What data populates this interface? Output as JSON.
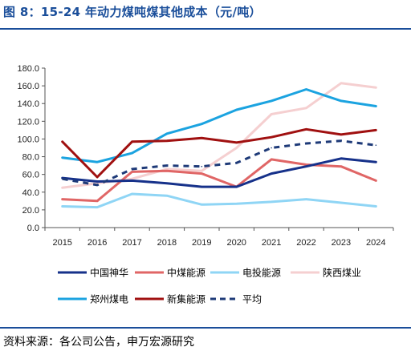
{
  "figure": {
    "title": "图 8：15-24 年动力煤吨煤其他成本（元/吨）",
    "source": "资料来源：各公司公告，申万宏源研究"
  },
  "chart_data": {
    "type": "line",
    "title": "",
    "xlabel": "",
    "ylabel": "",
    "x": [
      "2015",
      "2016",
      "2017",
      "2018",
      "2019",
      "2020",
      "2021",
      "2022",
      "2023",
      "2024"
    ],
    "ylim": [
      0,
      180
    ],
    "yticks": [
      "0.0",
      "20.0",
      "40.0",
      "60.0",
      "80.0",
      "100.0",
      "120.0",
      "140.0",
      "160.0",
      "180.0"
    ],
    "grid": false,
    "legend_position": "bottom",
    "series": [
      {
        "name": "中国神华",
        "color": "#16318a",
        "dash": false,
        "values": [
          56,
          52,
          53,
          50,
          46,
          46,
          61,
          69,
          78,
          74
        ]
      },
      {
        "name": "中煤能源",
        "color": "#e06666",
        "dash": false,
        "values": [
          32,
          30,
          63,
          64,
          61,
          46,
          77,
          71,
          69,
          53
        ]
      },
      {
        "name": "电投能源",
        "color": "#8fd5f5",
        "dash": false,
        "values": [
          24,
          23,
          38,
          36,
          26,
          27,
          29,
          32,
          28,
          24
        ]
      },
      {
        "name": "陕西煤业",
        "color": "#f5cfd0",
        "dash": false,
        "values": [
          45,
          50,
          55,
          66,
          64,
          90,
          128,
          135,
          163,
          158
        ]
      },
      {
        "name": "郑州煤电",
        "color": "#1ba3e0",
        "dash": false,
        "values": [
          79,
          74,
          84,
          106,
          117,
          133,
          143,
          156,
          143,
          137
        ]
      },
      {
        "name": "新集能源",
        "color": "#a01010",
        "dash": false,
        "values": [
          97,
          57,
          97,
          98,
          101,
          96,
          102,
          111,
          105,
          110
        ]
      },
      {
        "name": "平均",
        "color": "#1e3a78",
        "dash": true,
        "values": [
          55,
          48,
          66,
          70,
          69,
          73,
          90,
          95,
          98,
          93
        ]
      }
    ]
  }
}
